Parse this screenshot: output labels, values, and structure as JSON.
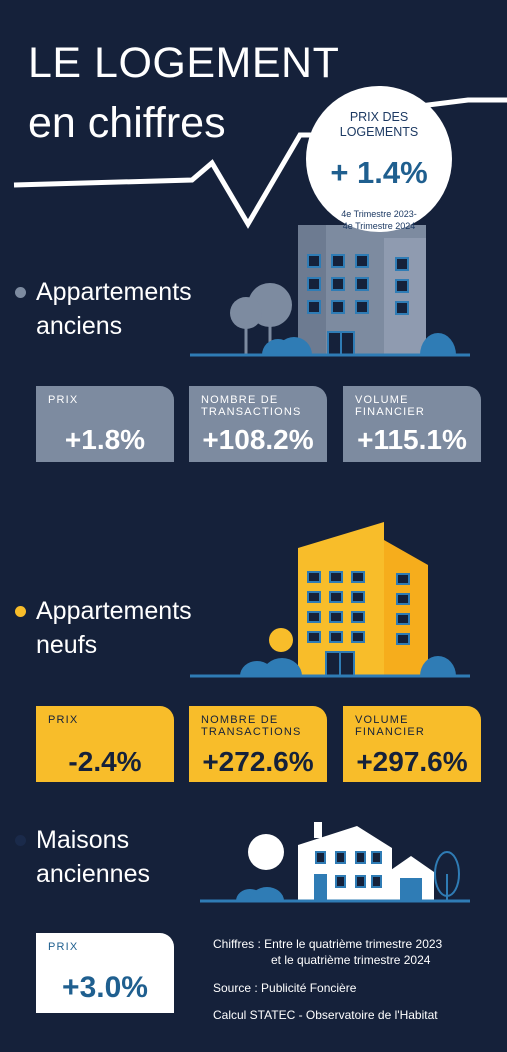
{
  "header": {
    "title_line1": "LE LOGEMENT",
    "title_line2": "en chiffres"
  },
  "badge": {
    "label_line1": "PRIX DES",
    "label_line2": "LOGEMENTS",
    "value": "+ 1.4%",
    "period_line1": "4e Trimestre 2023-",
    "period_line2": "4e Trimestre 2024"
  },
  "sections": [
    {
      "title_line1": "Appartements",
      "title_line2": "anciens",
      "cards": [
        {
          "label": "PRIX",
          "label2": "",
          "value": "+1.8%"
        },
        {
          "label": "NOMBRE DE",
          "label2": "TRANSACTIONS",
          "value": "+108.2%"
        },
        {
          "label": "VOLUME",
          "label2": "FINANCIER",
          "value": "+115.1%"
        }
      ]
    },
    {
      "title_line1": "Appartements",
      "title_line2": "neufs",
      "cards": [
        {
          "label": "PRIX",
          "label2": "",
          "value": "-2.4%"
        },
        {
          "label": "NOMBRE DE",
          "label2": "TRANSACTIONS",
          "value": "+272.6%"
        },
        {
          "label": "VOLUME",
          "label2": "FINANCIER",
          "value": "+297.6%"
        }
      ]
    },
    {
      "title_line1": "Maisons",
      "title_line2": "anciennes",
      "cards": [
        {
          "label": "PRIX",
          "label2": "",
          "value": "+3.0%"
        }
      ]
    }
  ],
  "footnotes": {
    "line1": "Chiffres : Entre le quatrième trimestre 2023",
    "line2": "et le quatrième trimestre 2024",
    "source": "Source :  Publicité Foncière",
    "calcul": "Calcul STATEC - Observatoire de l'Habitat"
  },
  "colors": {
    "background": "#15213a",
    "grey": "#7d8ba0",
    "yellow": "#f8bd2a",
    "blue": "#2f7cb5",
    "white": "#ffffff"
  },
  "icons": [
    "old-apartment-building-icon",
    "new-apartment-building-icon",
    "house-icon",
    "tree-icon",
    "bush-icon",
    "sun-icon"
  ]
}
